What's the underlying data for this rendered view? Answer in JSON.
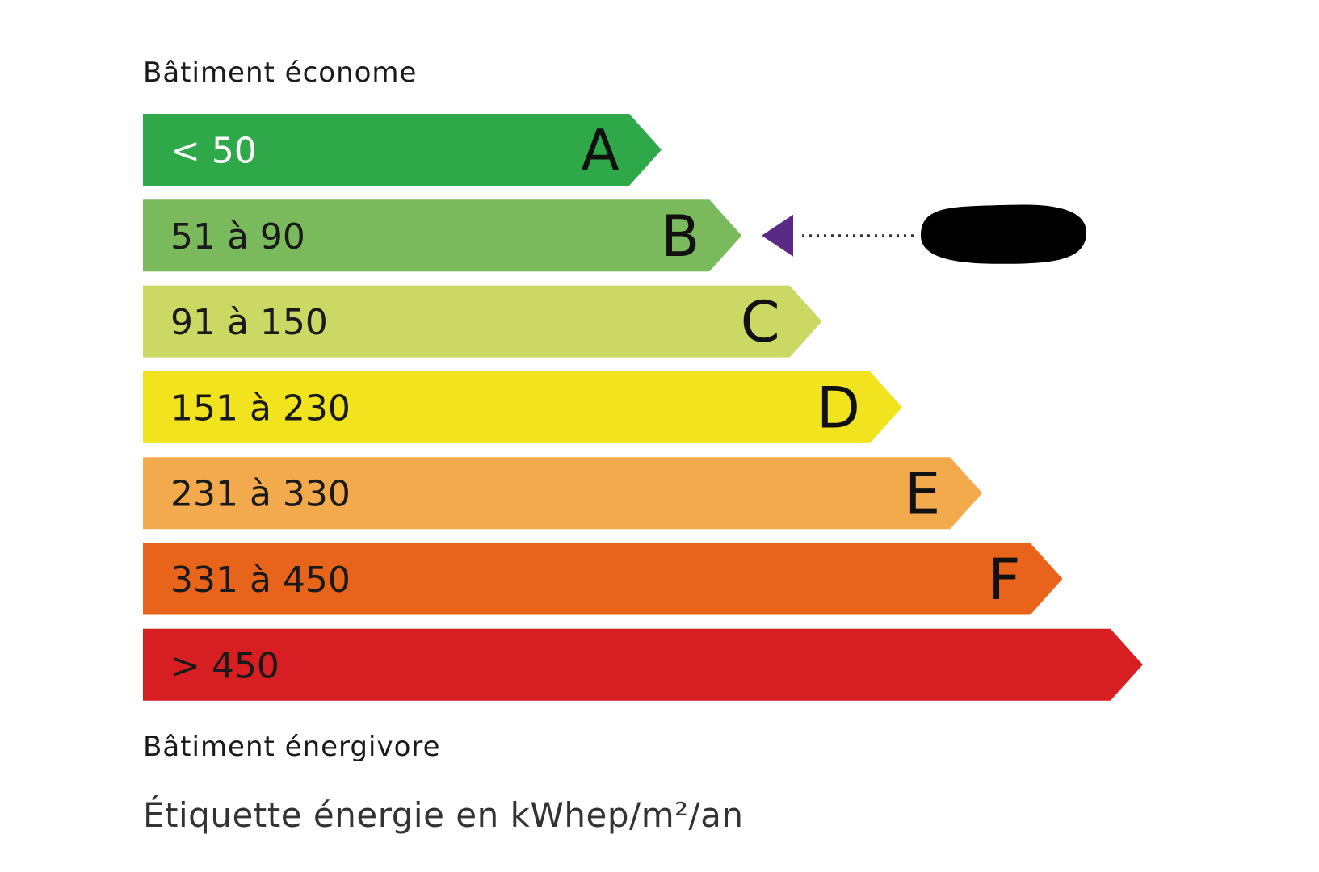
{
  "chart_data": {
    "type": "bar",
    "title": "Bâtiment économe",
    "footer_label": "Bâtiment énergivore",
    "caption": "Étiquette énergie en kWhep/m²/an",
    "categories": [
      "< 50",
      "51 à 90",
      "91 à 150",
      "151 à 230",
      "231 à 330",
      "331 à 450",
      "> 450"
    ],
    "classes": [
      "A",
      "B",
      "C",
      "D",
      "E",
      "F",
      ""
    ],
    "colors": [
      "#2fa84a",
      "#7aba5c",
      "#cbd964",
      "#f2e31f",
      "#f3aa4c",
      "#e8641b",
      "#d71e22"
    ],
    "label_colors": [
      "#ffffff",
      "#1a1a1a",
      "#1a1a1a",
      "#1a1a1a",
      "#1a1a1a",
      "#1a1a1a",
      "#1a1a1a"
    ],
    "indicator": {
      "class": "B",
      "color": "#5b2a86",
      "value_redacted": true
    }
  }
}
